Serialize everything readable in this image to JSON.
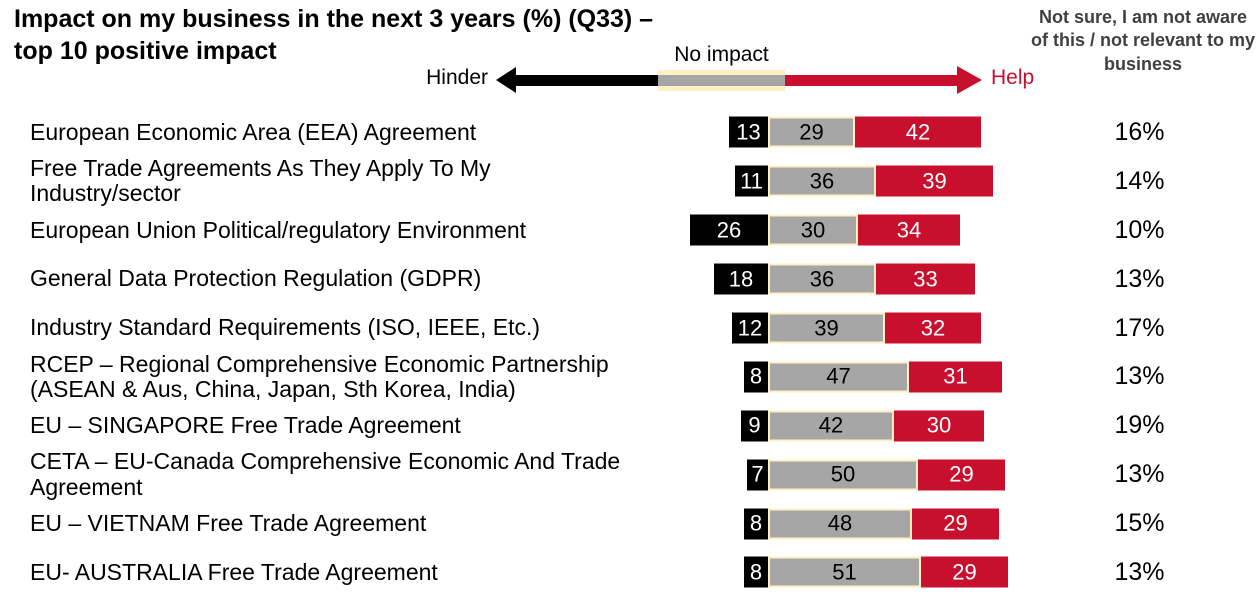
{
  "header": {
    "title": "Impact on my business in the next 3 years (%) (Q33) –\ntop 10 positive impact",
    "legend": {
      "hinder": "Hinder",
      "no_impact": "No impact",
      "help": "Help"
    },
    "not_sure_header": "Not sure, I am not aware of this / not relevant to my business"
  },
  "colors": {
    "hinder_bar": "#000000",
    "no_impact_bar": "#A6A6A6",
    "help_bar": "#C8102E",
    "no_impact_border": "#FFF0C4",
    "help_text": "#C8102E",
    "not_sure_header_text": "#404040"
  },
  "chart_data": {
    "type": "bar",
    "variant": "horizontal-diverging-stacked",
    "title": "Impact on my business in the next 3 years (%) (Q33) – top 10 positive impact",
    "unit": "percent of respondents",
    "legend_position": "top",
    "series_order": [
      "Hinder",
      "No impact",
      "Help"
    ],
    "rows": [
      {
        "label": "European Economic Area (EEA) Agreement",
        "hinder": 13,
        "no_impact": 29,
        "help": 42,
        "not_sure": "16%"
      },
      {
        "label": "Free Trade Agreements As They Apply To My\nIndustry/sector",
        "hinder": 11,
        "no_impact": 36,
        "help": 39,
        "not_sure": "14%"
      },
      {
        "label": "European Union Political/regulatory Environment",
        "hinder": 26,
        "no_impact": 30,
        "help": 34,
        "not_sure": "10%"
      },
      {
        "label": "General Data Protection Regulation (GDPR)",
        "hinder": 18,
        "no_impact": 36,
        "help": 33,
        "not_sure": "13%"
      },
      {
        "label": "Industry Standard Requirements (ISO, IEEE, Etc.)",
        "hinder": 12,
        "no_impact": 39,
        "help": 32,
        "not_sure": "17%"
      },
      {
        "label": "RCEP – Regional Comprehensive Economic Partnership\n(ASEAN & Aus, China, Japan, Sth Korea, India)",
        "hinder": 8,
        "no_impact": 47,
        "help": 31,
        "not_sure": "13%"
      },
      {
        "label": "EU – SINGAPORE Free Trade Agreement",
        "hinder": 9,
        "no_impact": 42,
        "help": 30,
        "not_sure": "19%"
      },
      {
        "label": "CETA – EU-Canada Comprehensive Economic And Trade\nAgreement",
        "hinder": 7,
        "no_impact": 50,
        "help": 29,
        "not_sure": "13%"
      },
      {
        "label": "EU – VIETNAM Free Trade Agreement",
        "hinder": 8,
        "no_impact": 48,
        "help": 29,
        "not_sure": "15%"
      },
      {
        "label": "EU- AUSTRALIA Free Trade Agreement",
        "hinder": 8,
        "no_impact": 51,
        "help": 29,
        "not_sure": "13%"
      }
    ]
  }
}
